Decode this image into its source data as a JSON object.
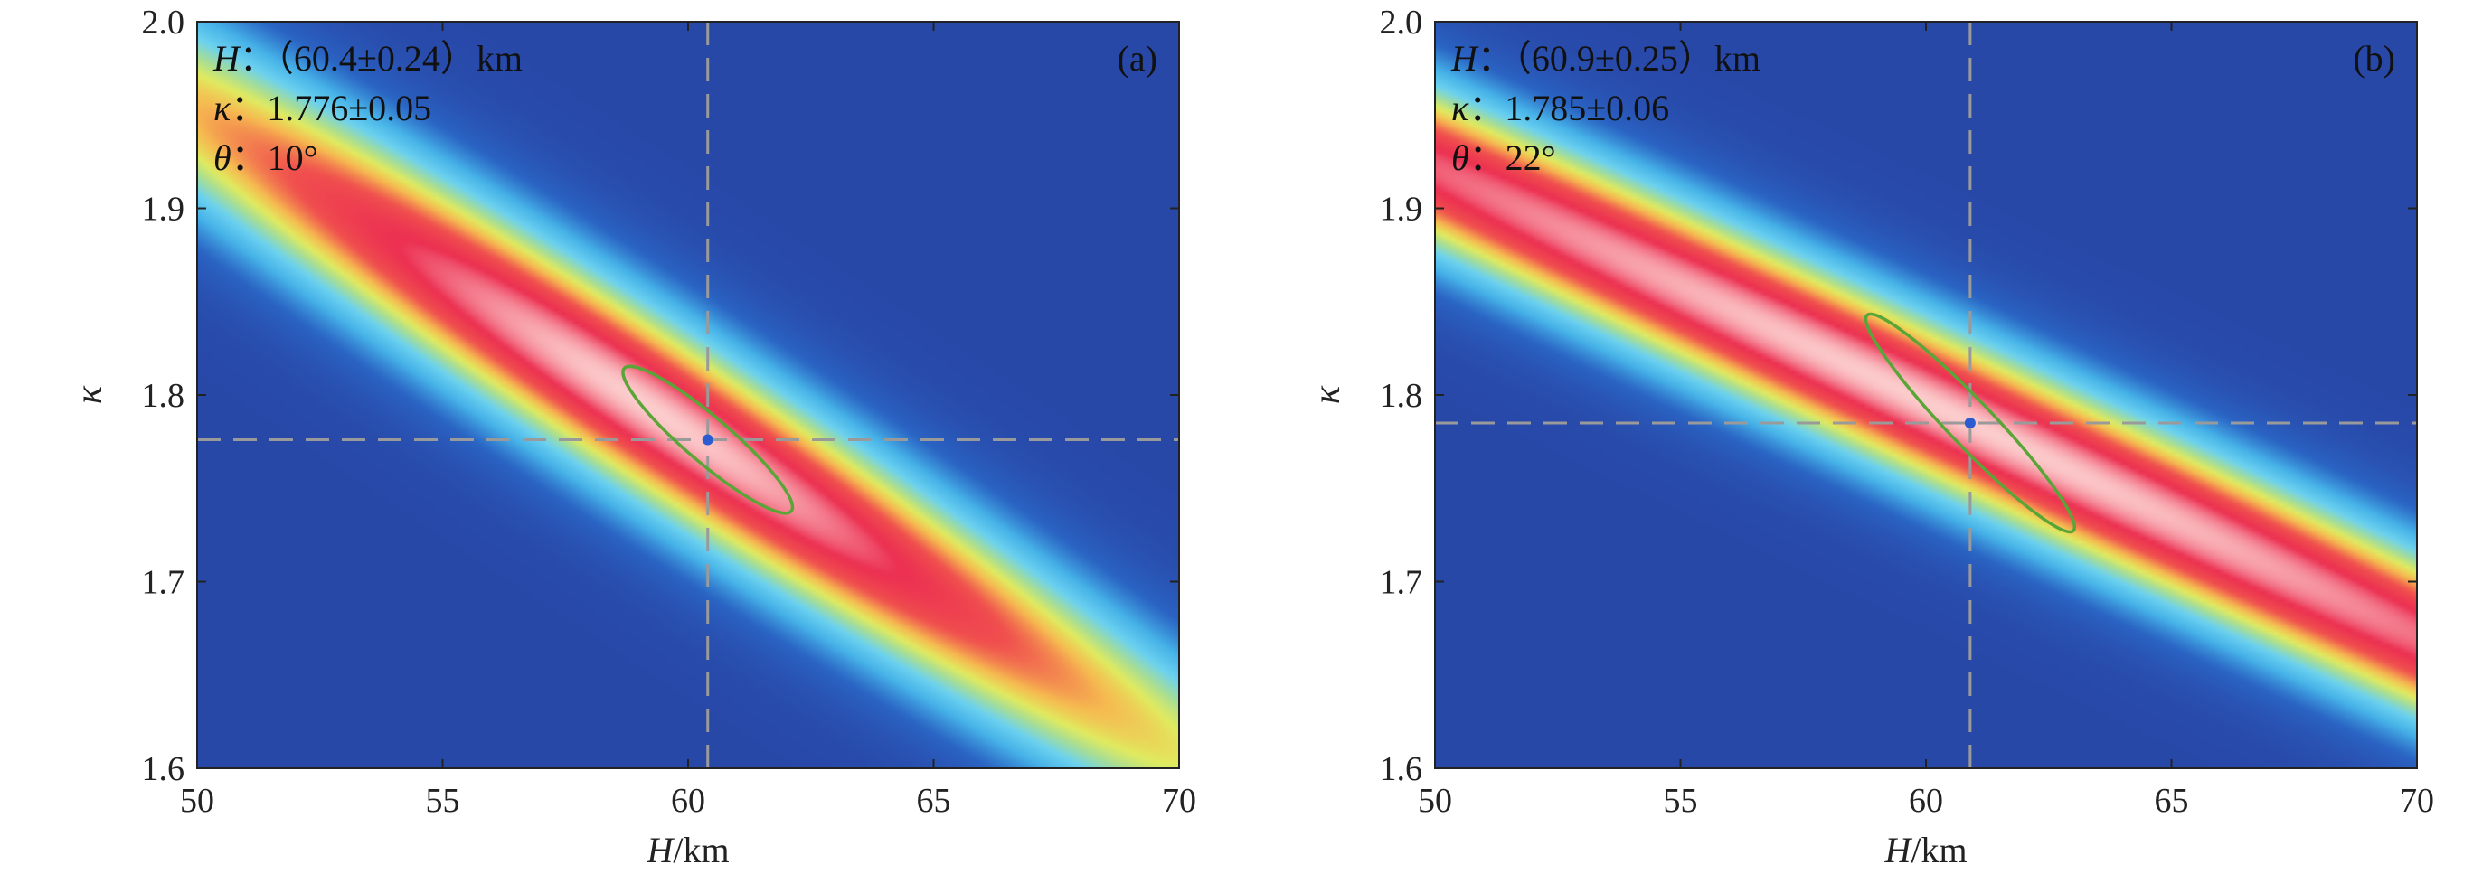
{
  "chart_data": [
    {
      "type": "heatmap",
      "panel_label": "(a)",
      "xlabel_var": "H",
      "xlabel_unit": "/km",
      "ylabel": "κ",
      "xlim": [
        50,
        70
      ],
      "ylim": [
        1.6,
        2.0
      ],
      "x_ticks": [
        50,
        55,
        60,
        65,
        70
      ],
      "x_tick_labels": [
        "50",
        "55",
        "60",
        "65",
        "70"
      ],
      "y_ticks": [
        1.6,
        1.7,
        1.8,
        1.9,
        2.0
      ],
      "y_tick_labels": [
        "1.6",
        "1.7",
        "1.8",
        "1.9",
        "2.0"
      ],
      "annotations": [
        {
          "var": "H",
          "text": "：（60.4±0.24）km"
        },
        {
          "var": "κ",
          "text": "：1.776±0.05"
        },
        {
          "var": "θ",
          "text": "：10°"
        }
      ],
      "best_fit": {
        "H": 60.4,
        "kappa": 1.776
      },
      "error_ellipse": {
        "center_H": 60.4,
        "center_kappa": 1.776,
        "half_length_H": 1.7,
        "slope_kappa_per_km": -0.0225,
        "half_width_kappa": 0.012
      },
      "field": {
        "ridge_center_H": 59.4,
        "ridge_center_kappa": 1.79,
        "ridge_slope": -0.017,
        "sigma_across": 0.042,
        "sigma_along_H": 8.0,
        "peak_center_H": 59.2,
        "peak_center_kappa": 1.795
      }
    },
    {
      "type": "heatmap",
      "panel_label": "(b)",
      "xlabel_var": "H",
      "xlabel_unit": "/km",
      "ylabel": "κ",
      "xlim": [
        50,
        70
      ],
      "ylim": [
        1.6,
        2.0
      ],
      "x_ticks": [
        50,
        55,
        60,
        65,
        70
      ],
      "x_tick_labels": [
        "50",
        "55",
        "60",
        "65",
        "70"
      ],
      "y_ticks": [
        1.6,
        1.7,
        1.8,
        1.9,
        2.0
      ],
      "y_tick_labels": [
        "1.6",
        "1.7",
        "1.8",
        "1.9",
        "2.0"
      ],
      "annotations": [
        {
          "var": "H",
          "text": "：（60.9±0.25）km"
        },
        {
          "var": "κ",
          "text": "：1.785±0.06"
        },
        {
          "var": "θ",
          "text": "：22°"
        }
      ],
      "best_fit": {
        "H": 60.9,
        "kappa": 1.785
      },
      "error_ellipse": {
        "center_H": 60.9,
        "center_kappa": 1.785,
        "half_length_H": 2.1,
        "slope_kappa_per_km": -0.0275,
        "half_width_kappa": 0.012
      },
      "field": {
        "ridge_center_H": 60.9,
        "ridge_center_kappa": 1.785,
        "ridge_slope": -0.0125,
        "sigma_across": 0.036,
        "sigma_along_H": 20.0,
        "peak_center_H": 60.5,
        "peak_center_kappa": 1.79
      }
    }
  ]
}
